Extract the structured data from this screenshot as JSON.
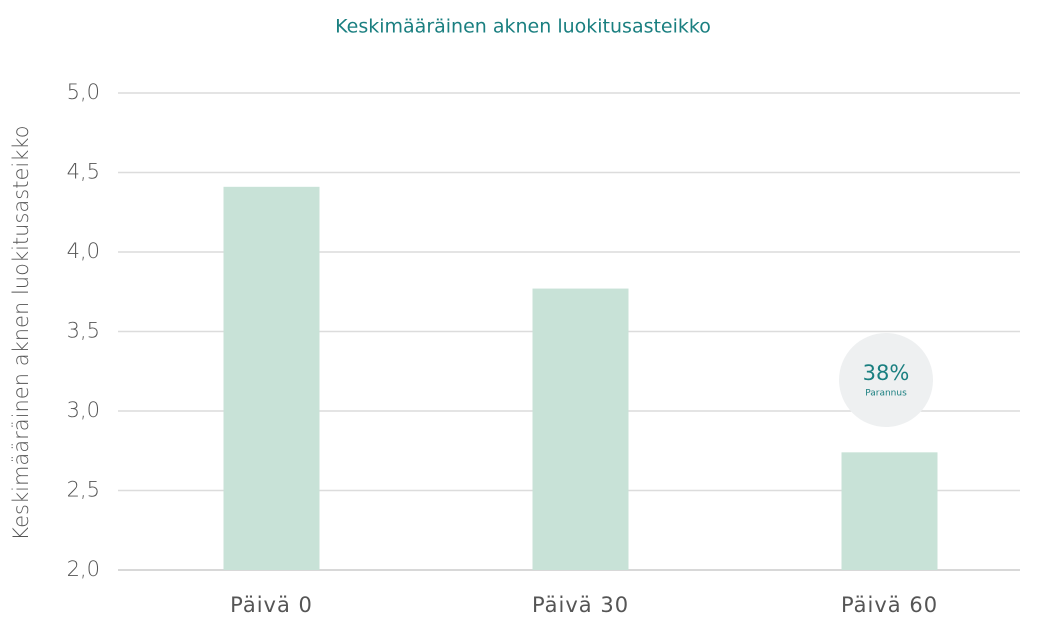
{
  "chart_data": {
    "type": "bar",
    "title": "Keskimääräinen aknen luokitusasteikko",
    "y_label": "Keskimääräinen aknen luokitusasteikko",
    "categories": [
      "Päivä 0",
      "Päivä 30",
      "Päivä 60"
    ],
    "values": [
      4.41,
      3.77,
      2.74
    ],
    "color": "#c8e2d7",
    "ylim": [
      2.0,
      5.0
    ],
    "yticks": [
      {
        "value": 2.0,
        "label": "2,0"
      },
      {
        "value": 2.5,
        "label": "2,5"
      },
      {
        "value": 3.0,
        "label": "3,0"
      },
      {
        "value": 3.5,
        "label": "3,5"
      },
      {
        "value": 4.0,
        "label": "4,0"
      },
      {
        "value": 4.5,
        "label": "4,5"
      },
      {
        "value": 5.0,
        "label": "5,0"
      }
    ],
    "grid": true,
    "annotation": {
      "text": "38%",
      "subtext": "Parannus"
    }
  }
}
